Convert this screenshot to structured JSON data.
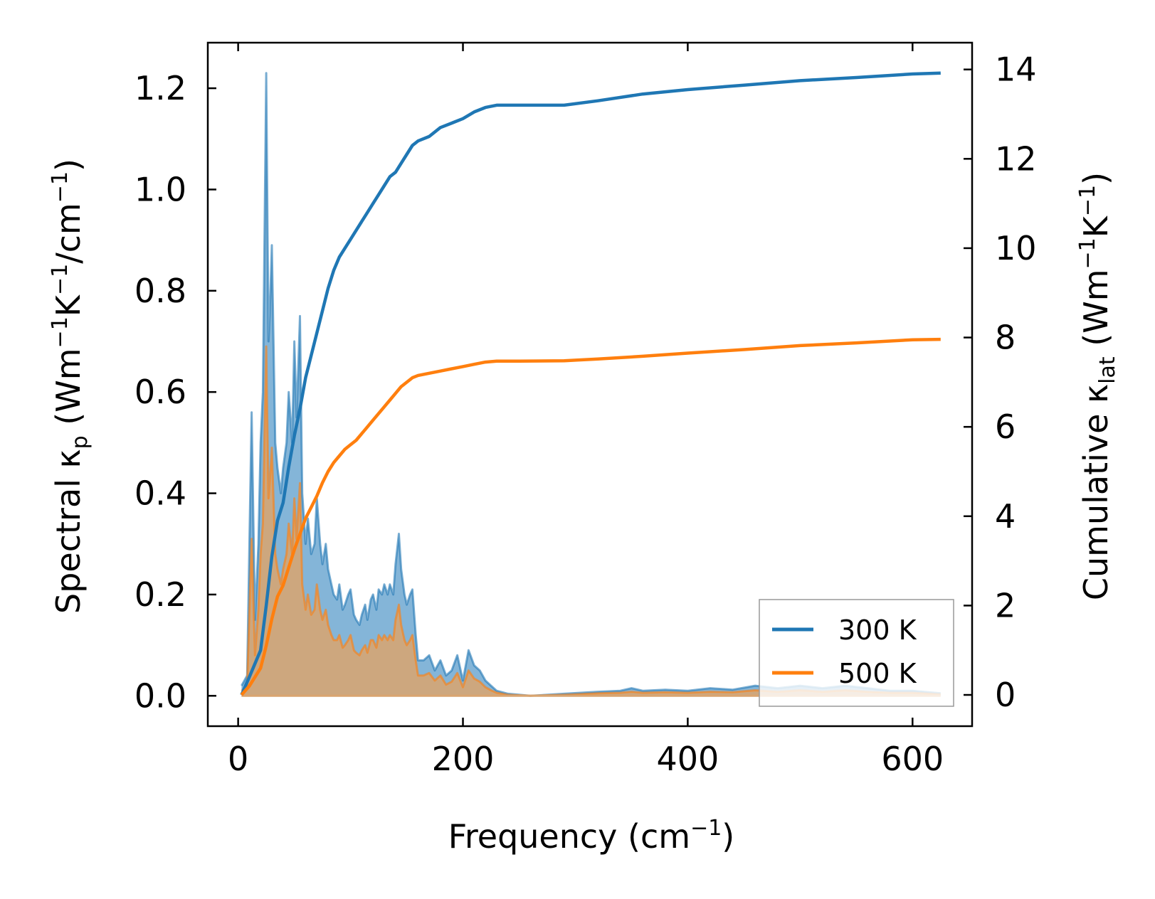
{
  "chart_data": {
    "type": "line",
    "xlabel": {
      "main": "Frequency (cm",
      "sup": "−1",
      "tail": ")"
    },
    "ylabel_left": {
      "p1": "Spectral κ",
      "sub": "p",
      "p2": " (Wm",
      "sup1": "−1",
      "p3": "K",
      "sup2": "−1",
      "p4": "/cm",
      "sup3": "−1",
      "p5": ")"
    },
    "ylabel_right": {
      "p1": "Cumulative κ",
      "sub": "lat",
      "p2": " (Wm",
      "sup1": "−1",
      "p3": "K",
      "sup2": "−1",
      "p4": ")"
    },
    "xlim": [
      -27,
      653
    ],
    "ylim_left": [
      -0.06,
      1.29
    ],
    "ylim_right": [
      -0.7,
      14.6
    ],
    "xticks": [
      0,
      200,
      400,
      600
    ],
    "xtick_labels": [
      "0",
      "200",
      "400",
      "600"
    ],
    "yticks_left": [
      0.0,
      0.2,
      0.4,
      0.6,
      0.8,
      1.0,
      1.2
    ],
    "ytick_labels_left": [
      "0.0",
      "0.2",
      "0.4",
      "0.6",
      "0.8",
      "1.0",
      "1.2"
    ],
    "yticks_right": [
      0,
      2,
      4,
      6,
      8,
      10,
      12,
      14
    ],
    "ytick_labels_right": [
      "0",
      "2",
      "4",
      "6",
      "8",
      "10",
      "12",
      "14"
    ],
    "legend": {
      "placement": "lower-right",
      "entries": [
        "300 K",
        "500 K"
      ]
    },
    "colors": {
      "300 K": "#1f77b4",
      "500 K": "#ff7f0e",
      "fill_300": "#5b9ccb",
      "fill_500": "#d9a46f"
    },
    "series": [
      {
        "name": "300 K",
        "axis": "right",
        "kind": "cumulative",
        "x": [
          3,
          10,
          20,
          25,
          30,
          35,
          40,
          45,
          50,
          55,
          60,
          65,
          70,
          75,
          80,
          85,
          90,
          95,
          100,
          105,
          110,
          115,
          120,
          125,
          130,
          135,
          140,
          145,
          150,
          155,
          160,
          170,
          180,
          190,
          200,
          210,
          220,
          230,
          250,
          290,
          320,
          360,
          400,
          450,
          500,
          550,
          600,
          625
        ],
        "y": [
          0.0,
          0.4,
          1.0,
          2.0,
          3.1,
          3.9,
          4.3,
          5.1,
          5.8,
          6.4,
          7.1,
          7.6,
          8.1,
          8.6,
          9.1,
          9.5,
          9.8,
          10.0,
          10.2,
          10.4,
          10.6,
          10.8,
          11.0,
          11.2,
          11.4,
          11.6,
          11.7,
          11.9,
          12.1,
          12.3,
          12.4,
          12.5,
          12.7,
          12.8,
          12.9,
          13.05,
          13.15,
          13.2,
          13.2,
          13.2,
          13.3,
          13.45,
          13.55,
          13.65,
          13.75,
          13.82,
          13.9,
          13.92
        ]
      },
      {
        "name": "500 K",
        "axis": "right",
        "kind": "cumulative",
        "x": [
          3,
          10,
          20,
          25,
          30,
          35,
          40,
          45,
          50,
          55,
          60,
          65,
          70,
          75,
          80,
          85,
          90,
          95,
          100,
          105,
          110,
          115,
          120,
          125,
          130,
          135,
          140,
          145,
          150,
          155,
          160,
          170,
          180,
          190,
          200,
          210,
          220,
          230,
          250,
          290,
          320,
          360,
          400,
          450,
          500,
          550,
          600,
          625
        ],
        "y": [
          0.0,
          0.2,
          0.6,
          1.1,
          1.7,
          2.2,
          2.45,
          2.85,
          3.25,
          3.6,
          3.95,
          4.2,
          4.45,
          4.75,
          5.0,
          5.2,
          5.35,
          5.5,
          5.6,
          5.7,
          5.85,
          6.0,
          6.15,
          6.3,
          6.45,
          6.6,
          6.75,
          6.9,
          7.0,
          7.1,
          7.15,
          7.2,
          7.25,
          7.3,
          7.35,
          7.4,
          7.45,
          7.47,
          7.47,
          7.48,
          7.52,
          7.58,
          7.65,
          7.73,
          7.82,
          7.88,
          7.95,
          7.96
        ]
      },
      {
        "name": "300 K",
        "axis": "left",
        "kind": "spectral",
        "x": [
          3,
          8,
          12,
          15,
          18,
          20,
          22,
          25,
          27,
          28,
          30,
          33,
          35,
          38,
          40,
          43,
          45,
          48,
          50,
          52,
          55,
          57,
          60,
          62,
          65,
          68,
          70,
          73,
          75,
          78,
          80,
          83,
          85,
          88,
          90,
          93,
          95,
          98,
          100,
          103,
          105,
          108,
          110,
          113,
          115,
          118,
          120,
          123,
          125,
          128,
          130,
          133,
          135,
          138,
          140,
          143,
          145,
          148,
          150,
          153,
          155,
          158,
          160,
          165,
          170,
          175,
          180,
          185,
          190,
          195,
          200,
          205,
          210,
          215,
          220,
          225,
          230,
          240,
          260,
          290,
          320,
          340,
          350,
          360,
          380,
          400,
          420,
          440,
          460,
          480,
          500,
          520,
          540,
          560,
          580,
          600,
          625
        ],
        "y": [
          0.02,
          0.04,
          0.56,
          0.15,
          0.3,
          0.5,
          0.6,
          1.23,
          0.7,
          0.75,
          0.89,
          0.5,
          0.45,
          0.4,
          0.45,
          0.5,
          0.6,
          0.5,
          0.7,
          0.55,
          0.75,
          0.4,
          0.3,
          0.35,
          0.28,
          0.3,
          0.39,
          0.3,
          0.26,
          0.3,
          0.25,
          0.22,
          0.2,
          0.19,
          0.22,
          0.17,
          0.18,
          0.2,
          0.21,
          0.16,
          0.15,
          0.14,
          0.16,
          0.18,
          0.15,
          0.19,
          0.2,
          0.17,
          0.21,
          0.2,
          0.22,
          0.2,
          0.22,
          0.2,
          0.26,
          0.32,
          0.25,
          0.2,
          0.18,
          0.2,
          0.21,
          0.12,
          0.07,
          0.07,
          0.08,
          0.05,
          0.07,
          0.04,
          0.05,
          0.08,
          0.03,
          0.09,
          0.06,
          0.05,
          0.03,
          0.02,
          0.01,
          0.004,
          0.0,
          0.004,
          0.008,
          0.01,
          0.015,
          0.01,
          0.012,
          0.01,
          0.015,
          0.012,
          0.02,
          0.015,
          0.02,
          0.015,
          0.02,
          0.015,
          0.01,
          0.01,
          0.005
        ]
      },
      {
        "name": "500 K",
        "axis": "left",
        "kind": "spectral",
        "x": [
          3,
          8,
          12,
          15,
          18,
          20,
          22,
          25,
          27,
          28,
          30,
          33,
          35,
          38,
          40,
          43,
          45,
          48,
          50,
          52,
          55,
          57,
          60,
          62,
          65,
          68,
          70,
          73,
          75,
          78,
          80,
          83,
          85,
          88,
          90,
          93,
          95,
          98,
          100,
          103,
          105,
          108,
          110,
          113,
          115,
          118,
          120,
          123,
          125,
          128,
          130,
          133,
          135,
          138,
          140,
          143,
          145,
          148,
          150,
          153,
          155,
          158,
          160,
          165,
          170,
          175,
          180,
          185,
          190,
          195,
          200,
          205,
          210,
          215,
          220,
          225,
          230,
          240,
          260,
          290,
          320,
          340,
          350,
          360,
          380,
          400,
          420,
          440,
          460,
          480,
          500,
          520,
          540,
          560,
          580,
          600,
          625
        ],
        "y": [
          0.01,
          0.02,
          0.31,
          0.08,
          0.17,
          0.28,
          0.34,
          0.69,
          0.39,
          0.42,
          0.49,
          0.28,
          0.25,
          0.22,
          0.25,
          0.28,
          0.34,
          0.28,
          0.39,
          0.31,
          0.42,
          0.22,
          0.17,
          0.2,
          0.16,
          0.17,
          0.22,
          0.17,
          0.15,
          0.17,
          0.14,
          0.12,
          0.11,
          0.11,
          0.12,
          0.095,
          0.1,
          0.11,
          0.12,
          0.09,
          0.085,
          0.08,
          0.09,
          0.1,
          0.085,
          0.11,
          0.11,
          0.095,
          0.12,
          0.11,
          0.12,
          0.11,
          0.12,
          0.11,
          0.15,
          0.18,
          0.14,
          0.11,
          0.1,
          0.11,
          0.12,
          0.07,
          0.04,
          0.04,
          0.045,
          0.03,
          0.04,
          0.022,
          0.028,
          0.045,
          0.017,
          0.05,
          0.034,
          0.028,
          0.017,
          0.011,
          0.006,
          0.002,
          0.0,
          0.002,
          0.005,
          0.006,
          0.008,
          0.006,
          0.007,
          0.006,
          0.008,
          0.007,
          0.011,
          0.008,
          0.011,
          0.008,
          0.011,
          0.008,
          0.006,
          0.006,
          0.003
        ]
      }
    ]
  }
}
